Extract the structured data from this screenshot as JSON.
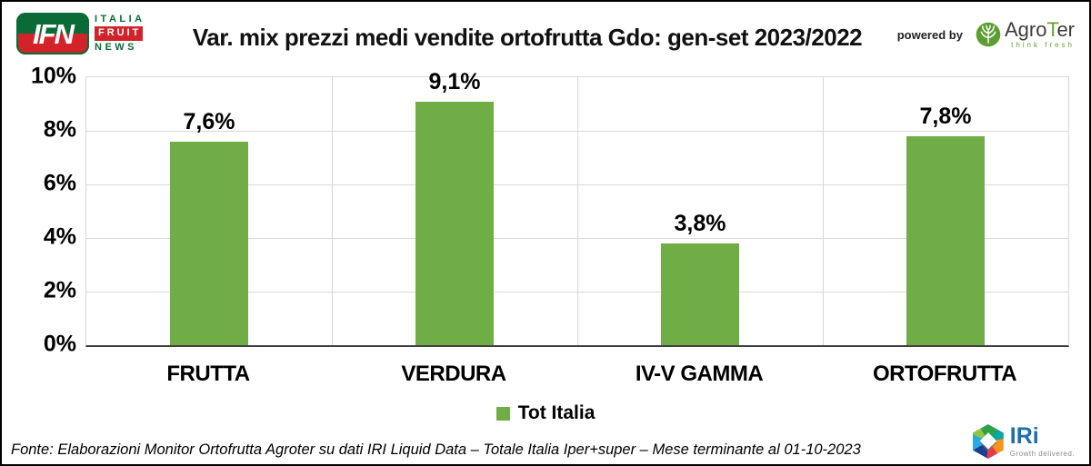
{
  "header": {
    "powered_by": "powered by",
    "ifn_logo": {
      "monogram": "IFN",
      "line1": "ITALIA",
      "line2": "FRUIT",
      "line3": "NEWS"
    },
    "agroter": {
      "name_prefix": "Agro",
      "name_t": "T",
      "name_suffix": "er",
      "tagline": "think fresh"
    }
  },
  "chart_data": {
    "type": "bar",
    "title": "Var. mix prezzi medi vendite ortofrutta Gdo: gen-set 2023/2022",
    "categories": [
      "FRUTTA",
      "VERDURA",
      "IV-V GAMMA",
      "ORTOFRUTTA"
    ],
    "values": [
      7.6,
      9.1,
      3.8,
      7.8
    ],
    "value_labels": [
      "7,6%",
      "9,1%",
      "3,8%",
      "7,8%"
    ],
    "series_name": "Tot Italia",
    "ylim": [
      0,
      10
    ],
    "yticks": [
      {
        "value": 10,
        "label": "10%"
      },
      {
        "value": 8,
        "label": "8%"
      },
      {
        "value": 6,
        "label": "6%"
      },
      {
        "value": 4,
        "label": "4%"
      },
      {
        "value": 2,
        "label": "2%"
      },
      {
        "value": 0,
        "label": "0%"
      }
    ],
    "bar_color": "#70AD47",
    "grid": true,
    "legend_position": "bottom"
  },
  "legend": {
    "label": "Tot Italia",
    "swatch_color": "#70AD47"
  },
  "footer": {
    "source": "Fonte: Elaborazioni Monitor Ortofrutta Agroter su dati IRI Liquid Data – Totale Italia Iper+super – Mese terminante al 01-10-2023",
    "iri": {
      "name": "IRi",
      "tagline": "Growth delivered."
    }
  }
}
